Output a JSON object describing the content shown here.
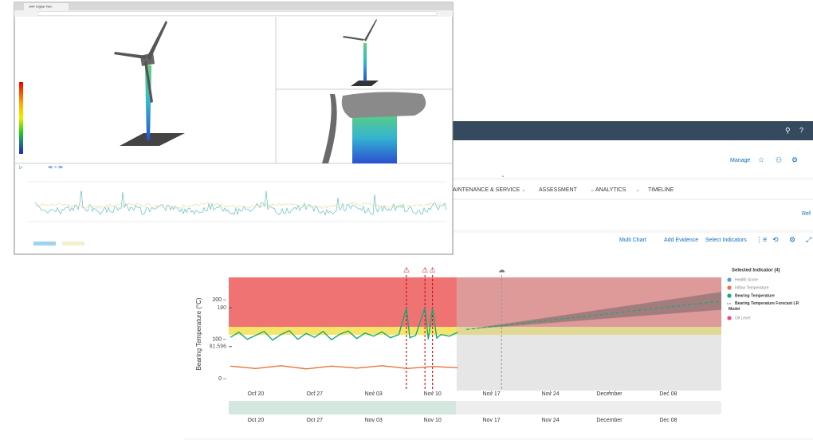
{
  "browser": {
    "tab_title": "SAP Digital Twin"
  },
  "app": {
    "header_action": "Manage",
    "tabs": [
      "AINTENANCE & SERVICE",
      "ASSESSMENT",
      "ANALYTICS",
      "TIMELINE"
    ],
    "refresh": "Ref",
    "toolbar": [
      "Multi Chart",
      "Add Evidence",
      "Select Indicators"
    ],
    "chart_data": {
      "type": "line",
      "y_label": "Bearing Temperature (°C)",
      "ylim": [
        -30,
        257
      ],
      "yticks": [
        0,
        100,
        200
      ],
      "thresholds": [
        {
          "value": 180,
          "label": "180"
        },
        {
          "value": 81.596,
          "label": "81.596"
        }
      ],
      "xlim": [
        -3.2,
        55.3
      ],
      "xticks": [
        {
          "value": 0,
          "label": "Oct 20"
        },
        {
          "value": 7,
          "label": "Oct 27"
        },
        {
          "value": 14,
          "label": "Nov 03"
        },
        {
          "value": 21,
          "label": "Nov 10"
        },
        {
          "value": 28,
          "label": "Nov 17"
        },
        {
          "value": 35,
          "label": "Nov 24"
        },
        {
          "value": 42,
          "label": "December"
        },
        {
          "value": 49,
          "label": "Dec 08"
        }
      ],
      "legend_title": "Selected Indicator (4)",
      "series": [
        {
          "name": "Health Score",
          "color": "#5899da",
          "x": [],
          "values": []
        },
        {
          "name": "Inflow Temperature",
          "color": "#e8743b",
          "x": [
            -3,
            0,
            3,
            6,
            9,
            12,
            15,
            18,
            21,
            24
          ],
          "values": [
            32,
            26,
            33,
            25,
            32,
            27,
            33,
            26,
            31,
            28
          ]
        },
        {
          "name": "Bearing Temperature",
          "color": "#19a979",
          "x": [
            -3,
            -2,
            -1,
            0,
            1,
            2,
            3,
            4,
            5,
            6,
            7,
            8,
            9,
            10,
            11,
            12,
            13,
            14,
            15,
            16,
            17,
            17.9,
            18.3,
            19,
            20.1,
            20.5,
            21,
            21.5,
            22,
            23,
            24
          ],
          "values": [
            105,
            118,
            100,
            110,
            120,
            98,
            112,
            122,
            100,
            115,
            105,
            120,
            99,
            113,
            121,
            102,
            116,
            108,
            119,
            104,
            112,
            180,
            104,
            110,
            180,
            100,
            180,
            103,
            112,
            108,
            118
          ]
        },
        {
          "name": "Bearing Temperature Forecast LR Model",
          "color": "#19a979",
          "dashed": true,
          "x": [
            25,
            55
          ],
          "values": [
            125,
            196
          ]
        },
        {
          "name": "Oil Level",
          "color": "#ed4a7b",
          "x": [],
          "values": []
        }
      ]
    }
  }
}
